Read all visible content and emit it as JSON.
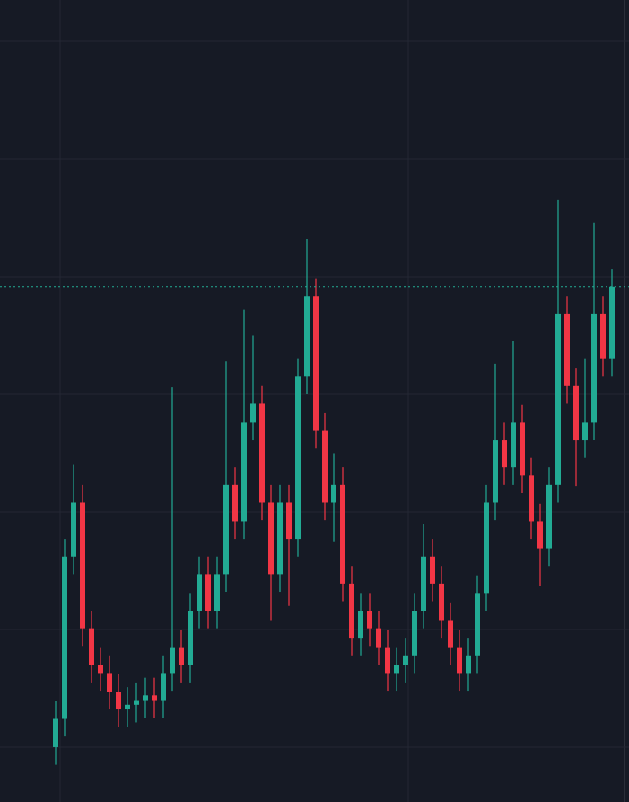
{
  "chart_data": {
    "type": "candlestick",
    "categories": [
      null,
      null,
      null,
      null,
      null,
      null,
      null,
      null,
      null,
      null,
      null,
      null,
      null,
      null,
      null,
      null,
      null,
      null,
      null,
      null,
      null,
      null,
      null,
      null,
      null,
      null,
      null,
      null,
      null,
      null,
      null,
      null,
      null,
      null,
      null,
      null,
      null,
      null,
      null,
      null,
      null,
      null,
      null,
      null,
      null,
      null,
      null,
      null,
      null,
      null,
      null,
      null,
      null,
      null,
      null,
      null,
      null,
      null,
      null,
      null,
      null,
      null,
      null
    ],
    "open": [
      0,
      24,
      162,
      208,
      101,
      70,
      63,
      47,
      32,
      36,
      40,
      44,
      40,
      63,
      85,
      70,
      116,
      147,
      116,
      147,
      223,
      192,
      276,
      292,
      208,
      147,
      208,
      177,
      315,
      383,
      269,
      208,
      223,
      139,
      93,
      116,
      101,
      85,
      63,
      70,
      78,
      116,
      162,
      139,
      108,
      85,
      63,
      78,
      131,
      208,
      261,
      238,
      276,
      231,
      192,
      169,
      223,
      368,
      307,
      261,
      276,
      368,
      330
    ],
    "high": [
      39,
      177,
      240,
      223,
      116,
      85,
      78,
      62,
      51,
      55,
      59,
      59,
      78,
      306,
      100,
      131,
      162,
      162,
      162,
      328,
      238,
      372,
      350,
      307,
      223,
      223,
      223,
      330,
      432,
      398,
      284,
      250,
      238,
      154,
      131,
      131,
      116,
      100,
      85,
      93,
      131,
      190,
      177,
      154,
      123,
      100,
      93,
      146,
      223,
      326,
      276,
      345,
      291,
      246,
      207,
      238,
      465,
      383,
      322,
      330,
      446,
      383,
      406
    ],
    "low": [
      -15,
      9,
      147,
      86,
      55,
      48,
      32,
      17,
      17,
      21,
      25,
      25,
      25,
      48,
      55,
      55,
      101,
      101,
      101,
      132,
      177,
      177,
      261,
      193,
      108,
      132,
      120,
      162,
      300,
      254,
      193,
      175,
      124,
      78,
      78,
      86,
      70,
      48,
      48,
      55,
      63,
      101,
      124,
      93,
      70,
      48,
      48,
      63,
      116,
      193,
      223,
      223,
      216,
      177,
      137,
      154,
      208,
      292,
      222,
      246,
      261,
      315,
      315
    ],
    "close": [
      24,
      162,
      208,
      101,
      70,
      63,
      47,
      32,
      36,
      40,
      44,
      40,
      63,
      85,
      70,
      116,
      147,
      116,
      147,
      223,
      192,
      276,
      292,
      208,
      147,
      208,
      177,
      315,
      383,
      269,
      208,
      223,
      139,
      93,
      116,
      101,
      85,
      63,
      70,
      78,
      116,
      162,
      139,
      108,
      85,
      63,
      78,
      131,
      208,
      261,
      238,
      276,
      231,
      192,
      169,
      223,
      368,
      307,
      261,
      276,
      368,
      330,
      391
    ],
    "up_color": "#22ab94",
    "down_color": "#f23645",
    "ylim": [
      -46.6,
      635.1
    ],
    "yticks": [
      0,
      100,
      200,
      300,
      400,
      500,
      600
    ],
    "xlim": [
      -6.2,
      63.9
    ],
    "xticks": [
      0.5,
      39.3
    ],
    "grid": true,
    "last_price_line": true
  }
}
